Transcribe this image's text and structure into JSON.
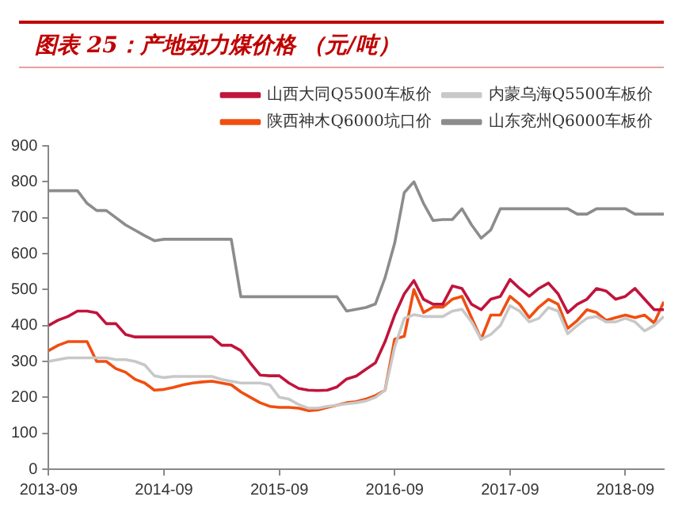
{
  "chart_data": {
    "type": "line",
    "title": "图表 25：产地动力煤价格 （元/吨）",
    "x": [
      "2013-09",
      "2013-10",
      "2013-11",
      "2013-12",
      "2014-01",
      "2014-02",
      "2014-03",
      "2014-04",
      "2014-05",
      "2014-06",
      "2014-07",
      "2014-08",
      "2014-09",
      "2014-10",
      "2014-11",
      "2014-12",
      "2015-01",
      "2015-02",
      "2015-03",
      "2015-04",
      "2015-05",
      "2015-06",
      "2015-07",
      "2015-08",
      "2015-09",
      "2015-10",
      "2015-11",
      "2015-12",
      "2016-01",
      "2016-02",
      "2016-03",
      "2016-04",
      "2016-05",
      "2016-06",
      "2016-07",
      "2016-08",
      "2016-09",
      "2016-10",
      "2016-11",
      "2016-12",
      "2017-01",
      "2017-02",
      "2017-03",
      "2017-04",
      "2017-05",
      "2017-06",
      "2017-07",
      "2017-08",
      "2017-09",
      "2017-10",
      "2017-11",
      "2017-12",
      "2018-01",
      "2018-02",
      "2018-03",
      "2018-04",
      "2018-05",
      "2018-06",
      "2018-07",
      "2018-08",
      "2018-09",
      "2018-10",
      "2018-11",
      "2018-12",
      "2019-01"
    ],
    "series": [
      {
        "name": "山西大同Q5500车板价",
        "color": "#c0143c",
        "values": [
          400,
          415,
          425,
          440,
          440,
          435,
          405,
          405,
          375,
          368,
          368,
          368,
          368,
          368,
          368,
          368,
          368,
          368,
          345,
          345,
          330,
          295,
          262,
          260,
          260,
          240,
          225,
          220,
          219,
          220,
          229,
          251,
          259,
          278,
          296,
          355,
          429,
          488,
          525,
          473,
          459,
          459,
          510,
          503,
          459,
          444,
          473,
          481,
          528,
          503,
          481,
          503,
          518,
          488,
          436,
          459,
          473,
          503,
          496,
          473,
          481,
          503,
          473,
          444,
          444
        ]
      },
      {
        "name": "内蒙乌海Q5500车板价",
        "color": "#c8c8c8",
        "values": [
          300,
          305,
          310,
          310,
          310,
          310,
          310,
          305,
          305,
          300,
          290,
          260,
          255,
          258,
          258,
          258,
          258,
          258,
          250,
          245,
          240,
          240,
          240,
          235,
          200,
          195,
          180,
          170,
          170,
          175,
          178,
          182,
          185,
          190,
          200,
          220,
          340,
          420,
          430,
          425,
          425,
          425,
          440,
          445,
          410,
          362,
          375,
          400,
          455,
          440,
          410,
          420,
          450,
          440,
          377,
          400,
          420,
          425,
          410,
          410,
          420,
          410,
          385,
          400,
          425
        ]
      },
      {
        "name": "陕西神木Q6000坑口价",
        "color": "#f04e10",
        "values": [
          330,
          345,
          355,
          355,
          355,
          300,
          300,
          280,
          270,
          250,
          240,
          220,
          222,
          228,
          235,
          240,
          243,
          245,
          240,
          235,
          215,
          200,
          185,
          175,
          172,
          172,
          170,
          163,
          165,
          172,
          178,
          185,
          188,
          195,
          205,
          220,
          362,
          370,
          500,
          436,
          451,
          451,
          473,
          481,
          422,
          362,
          429,
          429,
          481,
          459,
          422,
          451,
          473,
          459,
          392,
          414,
          444,
          436,
          414,
          422,
          429,
          422,
          429,
          407,
          466
        ]
      },
      {
        "name": "山东兖州Q6000车板价",
        "color": "#8c8c8c",
        "values": [
          775,
          775,
          775,
          775,
          740,
          720,
          720,
          700,
          680,
          665,
          650,
          636,
          640,
          640,
          640,
          640,
          640,
          640,
          640,
          640,
          480,
          480,
          480,
          480,
          480,
          480,
          480,
          480,
          480,
          480,
          480,
          440,
          445,
          450,
          460,
          533,
          629,
          770,
          800,
          740,
          692,
          695,
          695,
          725,
          680,
          643,
          666,
          725,
          725,
          725,
          725,
          725,
          725,
          725,
          725,
          710,
          710,
          725,
          725,
          725,
          725,
          710,
          710,
          710,
          710
        ]
      }
    ],
    "xlim": [
      "2013-09",
      "2019-01"
    ],
    "xticks": [
      "2013-09",
      "2014-09",
      "2015-09",
      "2016-09",
      "2017-09",
      "2018-09"
    ],
    "ylim": [
      0,
      900
    ],
    "yticks": [
      0,
      100,
      200,
      300,
      400,
      500,
      600,
      700,
      800,
      900
    ],
    "grid": false,
    "legend": "top",
    "marker": "none",
    "line_style": "solid"
  }
}
